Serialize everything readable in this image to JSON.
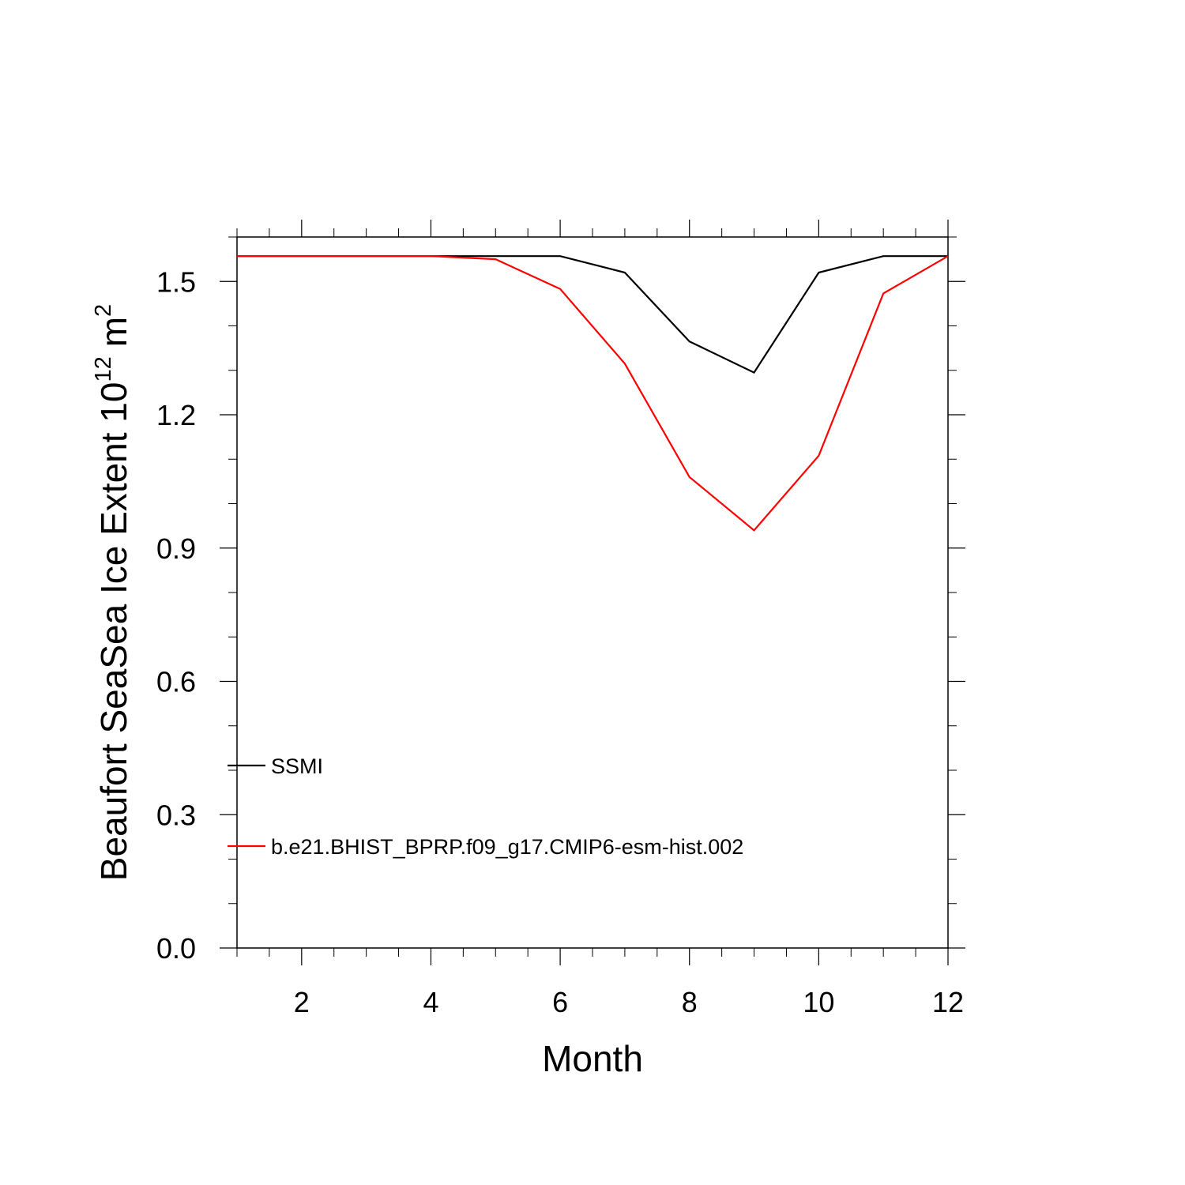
{
  "chart_data": {
    "type": "line",
    "title": "",
    "xlabel": "Month",
    "ylabel": {
      "main": "Beaufort SeaSea Ice Extent 10",
      "exponent": "12",
      "unit": "m",
      "unit_exponent": "2"
    },
    "xlim": [
      1,
      12
    ],
    "ylim": [
      0,
      1.6
    ],
    "x_ticks": [
      2,
      4,
      6,
      8,
      10,
      12
    ],
    "x_tick_labels": [
      "2",
      "4",
      "6",
      "8",
      "10",
      "12"
    ],
    "y_ticks": [
      0.0,
      0.3,
      0.6,
      0.9,
      1.2,
      1.5
    ],
    "y_tick_labels": [
      "0.0",
      "0.3",
      "0.6",
      "0.9",
      "1.2",
      "1.5"
    ],
    "x": [
      1,
      2,
      3,
      4,
      5,
      6,
      7,
      8,
      9,
      10,
      11,
      12
    ],
    "series": [
      {
        "name": "SSMI",
        "color": "#000000",
        "values": [
          1.557,
          1.557,
          1.557,
          1.557,
          1.557,
          1.557,
          1.52,
          1.365,
          1.295,
          1.52,
          1.557,
          1.557
        ]
      },
      {
        "name": "b.e21.BHIST_BPRP.f09_g17.CMIP6-esm-hist.002",
        "color": "#ff0000",
        "values": [
          1.557,
          1.557,
          1.557,
          1.557,
          1.55,
          1.483,
          1.315,
          1.06,
          0.94,
          1.108,
          1.473,
          1.557
        ]
      }
    ],
    "legend_placement": "lower-left inside",
    "grid": false
  }
}
